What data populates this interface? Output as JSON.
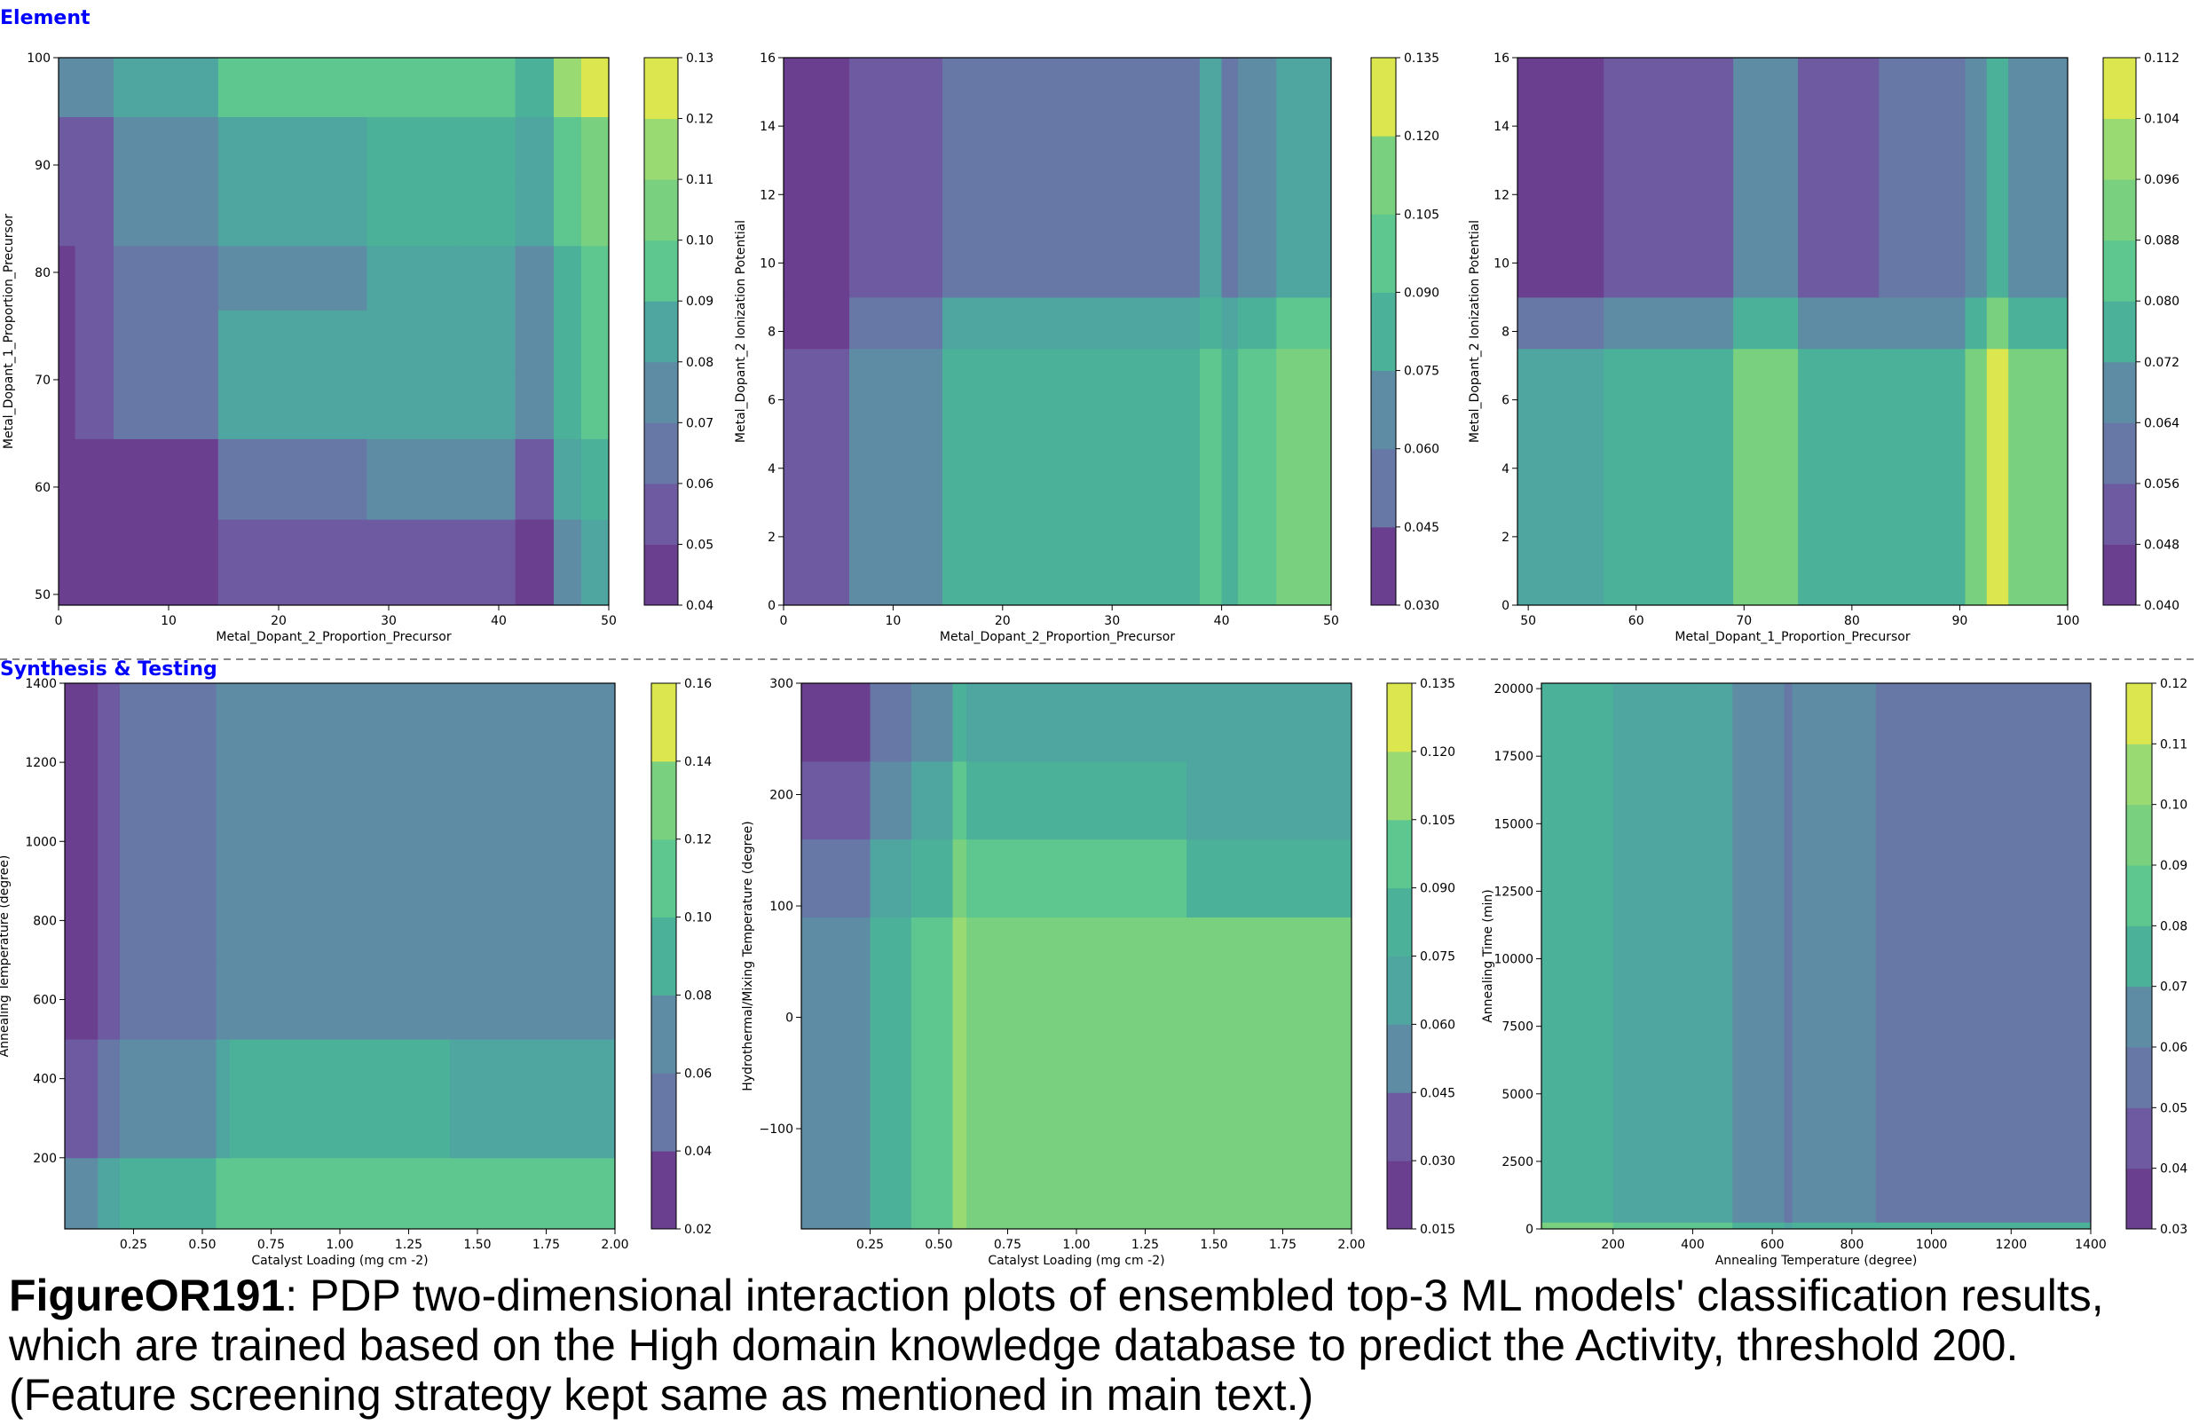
{
  "sections": {
    "top_label": "Element",
    "bottom_label": "Synthesis & Testing"
  },
  "caption": {
    "figure_id": "FigureOR191",
    "text": ": PDP two-dimensional interaction plots of ensembled top-3 ML models' classification results, which are trained based on the High domain knowledge database to predict the Activity, threshold 200. (Feature screening strategy kept same as mentioned in main text.)"
  },
  "colors": {
    "viridis": [
      "#6a3f8f",
      "#6e5aa0",
      "#6778a6",
      "#5d8ca4",
      "#4fa5a0",
      "#4cb199",
      "#5ec78f",
      "#79d07e",
      "#99da73",
      "#dce74f"
    ],
    "section_label": "#0000ff",
    "divider": "#888888"
  },
  "chart_data": [
    {
      "type": "heatmap",
      "title": "",
      "xlabel": "Metal_Dopant_2_Proportion_Precursor",
      "ylabel": "Metal_Dopant_1_Proportion_Precursor",
      "xlim": [
        0,
        50
      ],
      "ylim": [
        49,
        100
      ],
      "xticks": [
        0,
        10,
        20,
        30,
        40,
        50
      ],
      "yticks": [
        50,
        60,
        70,
        80,
        90,
        100
      ],
      "xtick_labels": [
        "0",
        "10",
        "20",
        "30",
        "40",
        "50"
      ],
      "ytick_labels": [
        "50",
        "60",
        "70",
        "80",
        "90",
        "100"
      ],
      "colorbar": {
        "range": [
          0.04,
          0.13
        ],
        "ticks": [
          "0.04",
          "0.05",
          "0.06",
          "0.07",
          "0.08",
          "0.09",
          "0.10",
          "0.11",
          "0.12",
          "0.13"
        ]
      },
      "x_bands": [
        [
          0,
          0.045
        ],
        [
          1.5,
          0.05
        ],
        [
          5,
          0.06
        ],
        [
          14.5,
          0.075
        ],
        [
          28,
          0.08
        ],
        [
          36,
          0.08
        ],
        [
          41.5,
          0.07
        ],
        [
          45,
          0.09
        ],
        [
          47.5,
          0.1
        ]
      ],
      "y_bands": [
        [
          49,
          0.05
        ],
        [
          57,
          0.06
        ],
        [
          64.5,
          0.075
        ],
        [
          70.5,
          0.075
        ],
        [
          76.5,
          0.072
        ],
        [
          82.5,
          0.08
        ],
        [
          88.5,
          0.08
        ],
        [
          94.5,
          0.095
        ]
      ]
    },
    {
      "type": "heatmap",
      "title": "",
      "xlabel": "Metal_Dopant_2_Proportion_Precursor",
      "ylabel": "Metal_Dopant_2 Ionization Potential",
      "xlim": [
        0,
        50
      ],
      "ylim": [
        0,
        16
      ],
      "xticks": [
        0,
        10,
        20,
        30,
        40,
        50
      ],
      "yticks": [
        0,
        2,
        4,
        6,
        8,
        10,
        12,
        14,
        16
      ],
      "xtick_labels": [
        "0",
        "10",
        "20",
        "30",
        "40",
        "50"
      ],
      "ytick_labels": [
        "0",
        "2",
        "4",
        "6",
        "8",
        "10",
        "12",
        "14",
        "16"
      ],
      "colorbar": {
        "range": [
          0.03,
          0.135
        ],
        "ticks": [
          "0.030",
          "0.045",
          "0.060",
          "0.075",
          "0.090",
          "0.105",
          "0.120",
          "0.135"
        ]
      },
      "x_bands": [
        [
          0,
          0.035
        ],
        [
          6,
          0.062
        ],
        [
          14.5,
          0.08
        ],
        [
          33,
          0.08
        ],
        [
          38,
          0.095
        ],
        [
          40,
          0.08
        ],
        [
          41.5,
          0.09
        ],
        [
          45,
          0.1
        ]
      ],
      "y_bands": [
        [
          0,
          0.08
        ],
        [
          7.5,
          0.068
        ],
        [
          9,
          0.052
        ]
      ]
    },
    {
      "type": "heatmap",
      "title": "",
      "xlabel": "Metal_Dopant_1_Proportion_Precursor",
      "ylabel": "Metal_Dopant_2 Ionization Potential",
      "xlim": [
        49,
        100
      ],
      "ylim": [
        0,
        16
      ],
      "xticks": [
        50,
        60,
        70,
        80,
        90,
        100
      ],
      "yticks": [
        0,
        2,
        4,
        6,
        8,
        10,
        12,
        14,
        16
      ],
      "xtick_labels": [
        "50",
        "60",
        "70",
        "80",
        "90",
        "100"
      ],
      "ytick_labels": [
        "0",
        "2",
        "4",
        "6",
        "8",
        "10",
        "12",
        "14",
        "16"
      ],
      "colorbar": {
        "range": [
          0.04,
          0.112
        ],
        "ticks": [
          "0.040",
          "0.048",
          "0.056",
          "0.064",
          "0.072",
          "0.080",
          "0.088",
          "0.096",
          "0.104",
          "0.112"
        ]
      },
      "x_bands": [
        [
          49,
          0.07
        ],
        [
          57,
          0.074
        ],
        [
          69,
          0.088
        ],
        [
          75,
          0.076
        ],
        [
          82.5,
          0.08
        ],
        [
          90.5,
          0.09
        ],
        [
          92.5,
          0.104
        ],
        [
          94.5,
          0.09
        ]
      ],
      "y_bands": [
        [
          0,
          0.076
        ],
        [
          7.5,
          0.062
        ],
        [
          9,
          0.05
        ]
      ]
    },
    {
      "type": "heatmap",
      "title": "",
      "xlabel": "Catalyst Loading (mg cm -2)",
      "ylabel": "Annealing Temperature (degree)",
      "xlim": [
        0,
        2
      ],
      "ylim": [
        20,
        1400
      ],
      "xticks": [
        0.25,
        0.5,
        0.75,
        1.0,
        1.25,
        1.5,
        1.75,
        2.0
      ],
      "yticks": [
        200,
        400,
        600,
        800,
        1000,
        1200,
        1400
      ],
      "xtick_labels": [
        "0.25",
        "0.50",
        "0.75",
        "1.00",
        "1.25",
        "1.50",
        "1.75",
        "2.00"
      ],
      "ytick_labels": [
        "200",
        "400",
        "600",
        "800",
        "1000",
        "1200",
        "1400"
      ],
      "colorbar": {
        "range": [
          0.02,
          0.16
        ],
        "ticks": [
          "0.02",
          "0.04",
          "0.06",
          "0.08",
          "0.10",
          "0.12",
          "0.14",
          "0.16"
        ]
      },
      "x_bands": [
        [
          0,
          0.03
        ],
        [
          0.12,
          0.045
        ],
        [
          0.2,
          0.065
        ],
        [
          0.55,
          0.075
        ],
        [
          0.6,
          0.08
        ],
        [
          1.0,
          0.08
        ],
        [
          1.4,
          0.075
        ],
        [
          1.5,
          0.07
        ]
      ],
      "y_bands": [
        [
          20,
          0.11
        ],
        [
          200,
          0.085
        ],
        [
          500,
          0.07
        ],
        [
          700,
          0.07
        ]
      ]
    },
    {
      "type": "heatmap",
      "title": "",
      "xlabel": "Catalyst Loading (mg cm -2)",
      "ylabel": "Hydrothermal/Mixing Temperature (degree)",
      "xlim": [
        0,
        2
      ],
      "ylim": [
        -190,
        300
      ],
      "xticks": [
        0.25,
        0.5,
        0.75,
        1.0,
        1.25,
        1.5,
        1.75,
        2.0
      ],
      "yticks": [
        -100,
        0,
        100,
        200,
        300
      ],
      "xtick_labels": [
        "0.25",
        "0.50",
        "0.75",
        "1.00",
        "1.25",
        "1.50",
        "1.75",
        "2.00"
      ],
      "ytick_labels": [
        "−100",
        "0",
        "100",
        "200",
        "300"
      ],
      "colorbar": {
        "range": [
          0.015,
          0.135
        ],
        "ticks": [
          "0.015",
          "0.030",
          "0.045",
          "0.060",
          "0.075",
          "0.090",
          "0.105",
          "0.120",
          "0.135"
        ]
      },
      "x_bands": [
        [
          0,
          0.04
        ],
        [
          0.25,
          0.065
        ],
        [
          0.4,
          0.075
        ],
        [
          0.55,
          0.1
        ],
        [
          0.6,
          0.09
        ],
        [
          1.4,
          0.08
        ]
      ],
      "y_bands": [
        [
          -190,
          0.095
        ],
        [
          90,
          0.08
        ],
        [
          160,
          0.07
        ],
        [
          230,
          0.06
        ]
      ]
    },
    {
      "type": "heatmap",
      "title": "",
      "xlabel": "Annealing Temperature (degree)",
      "ylabel": "Annealing Time (min)",
      "xlim": [
        20,
        1400
      ],
      "ylim": [
        0,
        20200
      ],
      "xticks": [
        200,
        400,
        600,
        800,
        1000,
        1200,
        1400
      ],
      "yticks": [
        0,
        2500,
        5000,
        7500,
        10000,
        12500,
        15000,
        17500,
        20000
      ],
      "xtick_labels": [
        "200",
        "400",
        "600",
        "800",
        "1000",
        "1200",
        "1400"
      ],
      "ytick_labels": [
        "0",
        "2500",
        "5000",
        "7500",
        "10000",
        "12500",
        "15000",
        "17500",
        "20000"
      ],
      "colorbar": {
        "range": [
          0.03,
          0.12
        ],
        "ticks": [
          "0.03",
          "0.04",
          "0.05",
          "0.06",
          "0.07",
          "0.08",
          "0.09",
          "0.10",
          "0.11",
          "0.12"
        ]
      },
      "x_bands": [
        [
          20,
          0.085
        ],
        [
          200,
          0.075
        ],
        [
          400,
          0.072
        ],
        [
          500,
          0.065
        ],
        [
          630,
          0.055
        ],
        [
          650,
          0.065
        ],
        [
          860,
          0.06
        ]
      ],
      "y_bands": [
        [
          0,
          0.09
        ],
        [
          250,
          0.07
        ]
      ]
    }
  ]
}
